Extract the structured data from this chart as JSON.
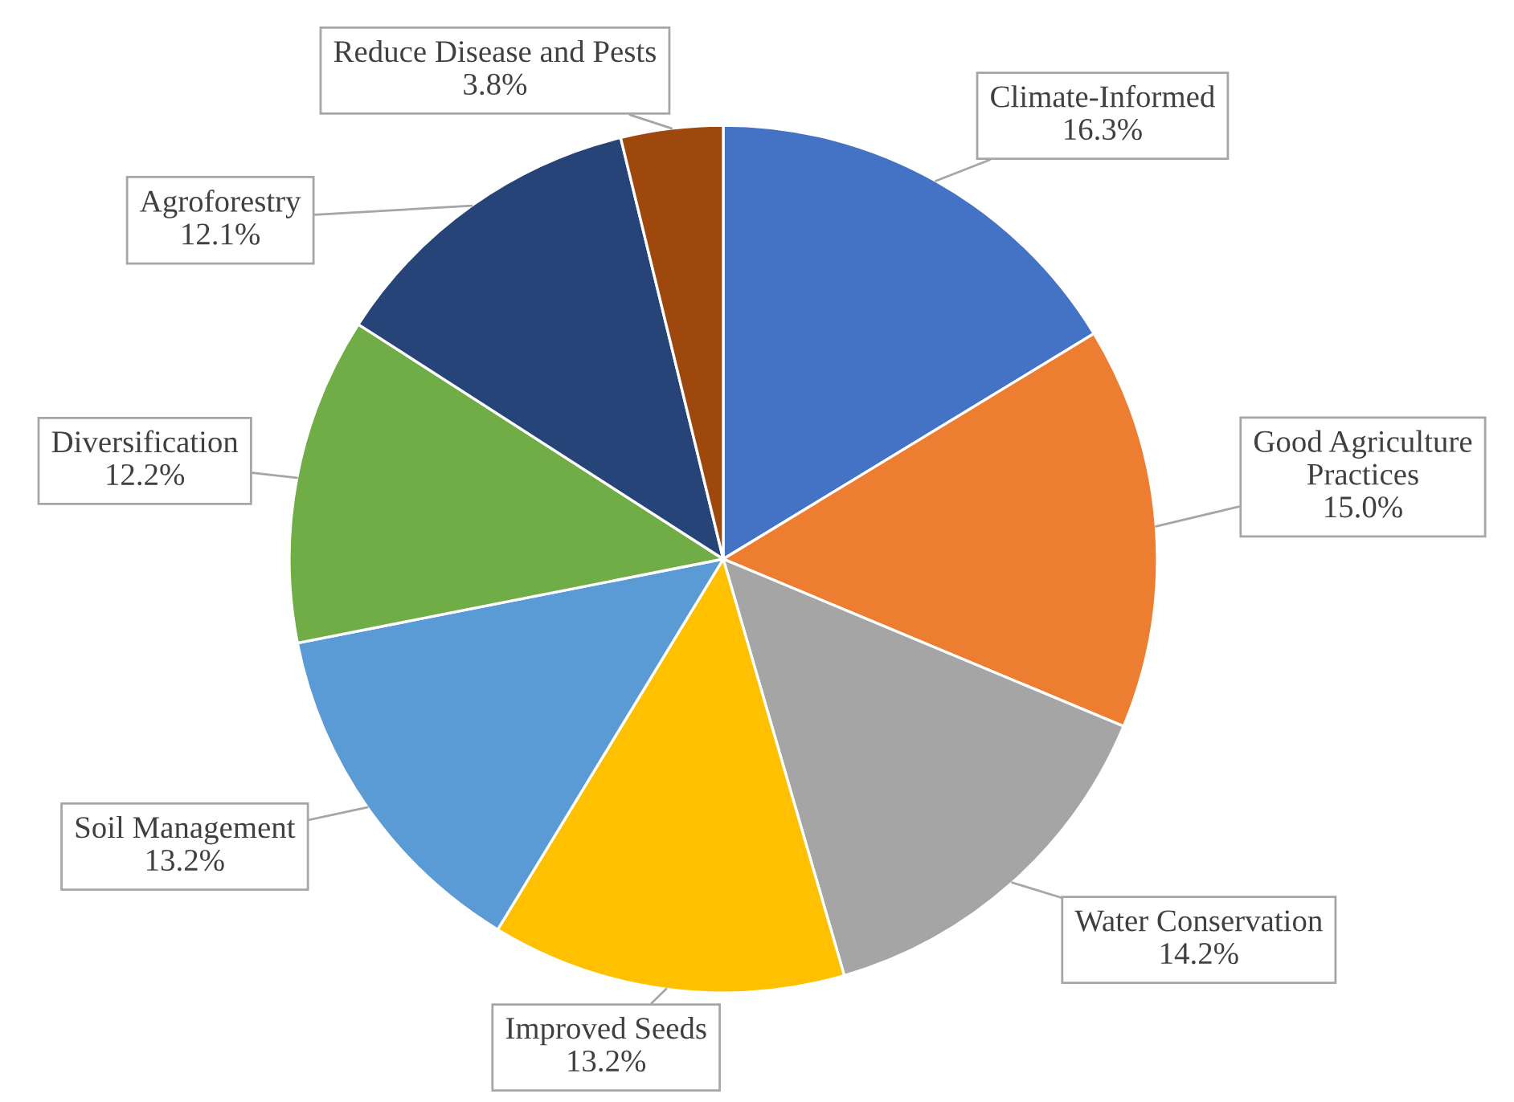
{
  "chart_data": {
    "type": "pie",
    "categories": [
      "Climate-Informed",
      "Good Agriculture\nPractices",
      "Water Conservation",
      "Improved Seeds",
      "Soil Management",
      "Diversification",
      "Agroforestry",
      "Reduce Disease and Pests"
    ],
    "values": [
      16.3,
      15.0,
      14.2,
      13.2,
      13.2,
      12.2,
      12.1,
      3.8
    ],
    "value_labels": [
      "16.3%",
      "15.0%",
      "14.2%",
      "13.2%",
      "13.2%",
      "12.2%",
      "12.1%",
      "3.8%"
    ],
    "colors": [
      "#4472c4",
      "#ed7d31",
      "#a5a5a5",
      "#ffc000",
      "#5b9bd5",
      "#70ad47",
      "#264478",
      "#9e480e"
    ],
    "legend": false
  }
}
